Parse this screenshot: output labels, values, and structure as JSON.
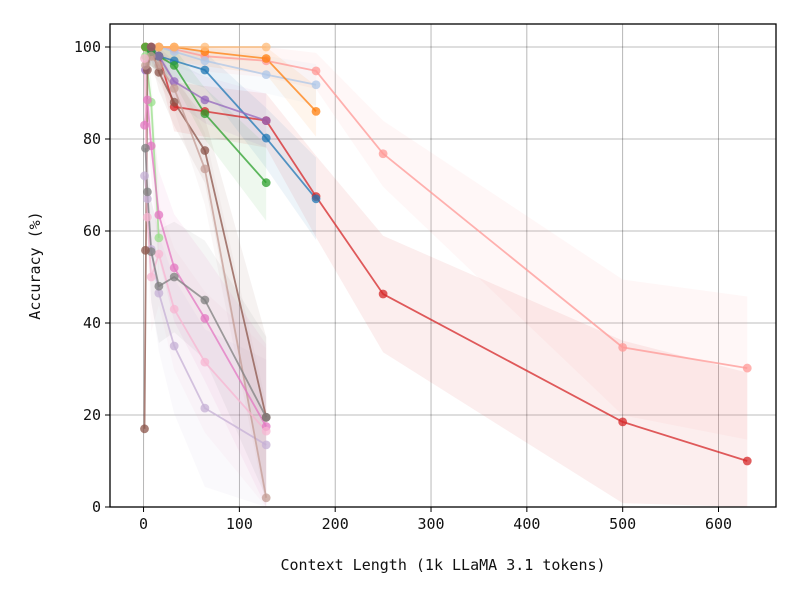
{
  "chart_data": {
    "type": "line",
    "title": "",
    "xlabel": "Context Length (1k LLaMA 3.1 tokens)",
    "ylabel": "Accuracy (%)",
    "xlim": [
      -35,
      660
    ],
    "ylim": [
      0,
      105
    ],
    "xticks": [
      0,
      100,
      200,
      300,
      400,
      500,
      600
    ],
    "yticks": [
      0,
      20,
      40,
      60,
      80,
      100
    ],
    "grid": true,
    "legend": "none",
    "series": [
      {
        "name": "series-1",
        "color": "#d62728",
        "alpha": 0.75,
        "band": true,
        "x": [
          2,
          8,
          16,
          32,
          64,
          128,
          180,
          250,
          500,
          630
        ],
        "y": [
          100,
          99,
          98,
          87,
          86,
          84,
          67.5,
          46.3,
          18.5,
          10
        ]
      },
      {
        "name": "series-2",
        "color": "#ff9896",
        "alpha": 0.75,
        "band": true,
        "x": [
          2,
          8,
          16,
          32,
          64,
          128,
          180,
          250,
          500,
          630
        ],
        "y": [
          100,
          100,
          100,
          99.5,
          98,
          97,
          94.8,
          76.8,
          34.7,
          30.2
        ]
      },
      {
        "name": "series-3",
        "color": "#1f77b4",
        "alpha": 0.75,
        "band": true,
        "x": [
          2,
          8,
          16,
          32,
          64,
          128,
          180
        ],
        "y": [
          100,
          99,
          98,
          97,
          95,
          80.2,
          67
        ]
      },
      {
        "name": "series-4",
        "color": "#aec7e8",
        "alpha": 0.75,
        "band": true,
        "x": [
          2,
          8,
          16,
          32,
          64,
          128,
          180
        ],
        "y": [
          100,
          100,
          100,
          99,
          97,
          94,
          91.8
        ]
      },
      {
        "name": "series-5",
        "color": "#ff7f0e",
        "alpha": 0.75,
        "band": true,
        "x": [
          2,
          8,
          16,
          32,
          64,
          128,
          180
        ],
        "y": [
          100,
          100,
          100,
          100,
          99,
          97.5,
          86
        ]
      },
      {
        "name": "series-6",
        "color": "#ffbb78",
        "alpha": 0.75,
        "band": true,
        "x": [
          2,
          8,
          16,
          32,
          64,
          128
        ],
        "y": [
          100,
          100,
          100,
          100,
          100,
          100
        ]
      },
      {
        "name": "series-7",
        "color": "#2ca02c",
        "alpha": 0.75,
        "band": true,
        "x": [
          2,
          8,
          16,
          32,
          64,
          128
        ],
        "y": [
          100,
          99,
          98,
          96,
          85.5,
          70.5
        ]
      },
      {
        "name": "series-8",
        "color": "#98df8a",
        "alpha": 0.75,
        "band": true,
        "x": [
          2,
          8,
          16
        ],
        "y": [
          98,
          88,
          58.5
        ]
      },
      {
        "name": "series-9",
        "color": "#9467bd",
        "alpha": 0.75,
        "band": true,
        "x": [
          2,
          8,
          16,
          32,
          64,
          128
        ],
        "y": [
          95,
          100,
          98,
          92.5,
          88.5,
          84
        ]
      },
      {
        "name": "series-10",
        "color": "#c5b0d5",
        "alpha": 0.75,
        "band": true,
        "x": [
          1,
          4,
          8,
          16,
          32,
          64,
          128
        ],
        "y": [
          72,
          67,
          56,
          46.5,
          35,
          21.5,
          13.5
        ]
      },
      {
        "name": "series-11",
        "color": "#8c564b",
        "alpha": 0.75,
        "band": true,
        "x": [
          1,
          4,
          8,
          16,
          32,
          64,
          128
        ],
        "y": [
          17,
          95,
          100,
          94.5,
          88,
          77.5,
          19.5
        ]
      },
      {
        "name": "series-12",
        "color": "#c49c94",
        "alpha": 0.75,
        "band": true,
        "x": [
          2,
          8,
          16,
          32,
          64,
          128
        ],
        "y": [
          96,
          98,
          96,
          91,
          73.5,
          2
        ]
      },
      {
        "name": "series-13",
        "color": "#e377c2",
        "alpha": 0.75,
        "band": true,
        "x": [
          1,
          4,
          8,
          16,
          32,
          64,
          128
        ],
        "y": [
          83,
          88.5,
          78.5,
          63.5,
          52,
          41,
          17.5
        ]
      },
      {
        "name": "series-14",
        "color": "#f7b6d2",
        "alpha": 0.75,
        "band": true,
        "x": [
          1,
          4,
          8,
          16,
          32,
          64,
          128
        ],
        "y": [
          97.5,
          63,
          50,
          55,
          43,
          31.5,
          16.5
        ]
      },
      {
        "name": "series-15",
        "color": "#7f7f7f",
        "alpha": 0.75,
        "band": true,
        "x": [
          2,
          4,
          8,
          16,
          32,
          64,
          128
        ],
        "y": [
          78,
          68.5,
          55.5,
          48,
          50,
          45,
          19.5
        ]
      },
      {
        "name": "series-16",
        "color": "#8c564b",
        "alpha": 0.75,
        "band": false,
        "x": [
          2
        ],
        "y": [
          55.8
        ]
      }
    ]
  }
}
